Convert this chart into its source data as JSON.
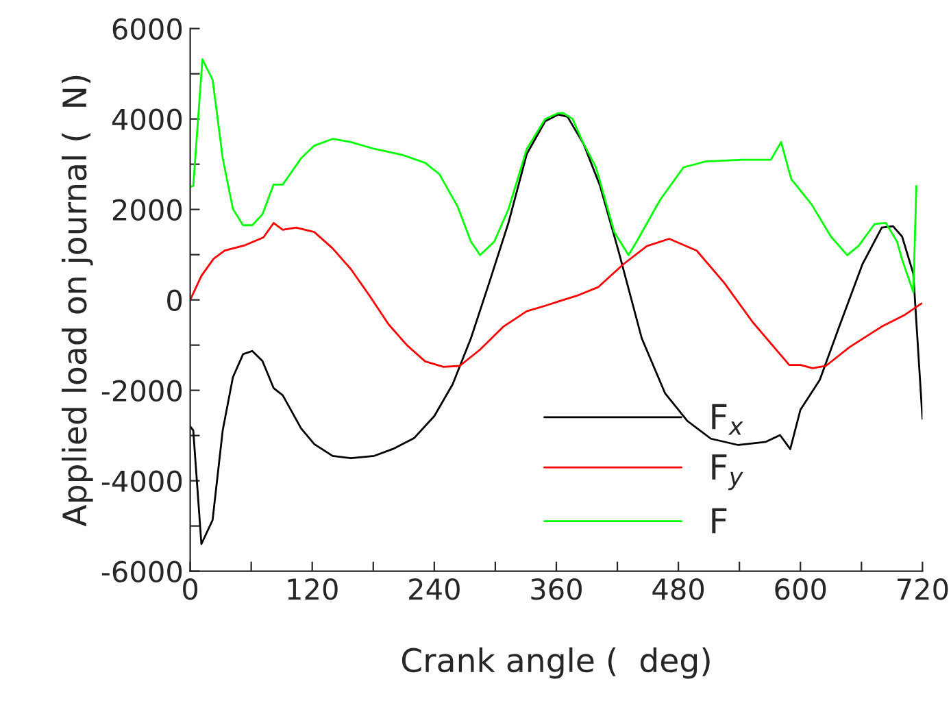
{
  "chart_data": {
    "type": "line",
    "xlabel": "Crank angle (  deg)",
    "ylabel": "Applied load on journal (  N)",
    "xlim": [
      0,
      720
    ],
    "ylim": [
      -6000,
      6000
    ],
    "xticks": [
      0,
      {
        "value": 60,
        "label": null
      },
      120,
      {
        "value": 180,
        "label": null
      },
      240,
      {
        "value": 300,
        "label": null
      },
      360,
      {
        "value": 420,
        "label": null
      },
      480,
      {
        "value": 540,
        "label": null
      },
      600,
      {
        "value": 660,
        "label": null
      },
      720
    ],
    "yticks": [
      -6000,
      {
        "value": -5000,
        "label": null
      },
      -4000,
      {
        "value": -3000,
        "label": null
      },
      -2000,
      {
        "value": -1000,
        "label": null
      },
      0,
      {
        "value": 1000,
        "label": null
      },
      2000,
      {
        "value": 3000,
        "label": null
      },
      4000,
      {
        "value": 5000,
        "label": null
      },
      6000
    ],
    "grid": false,
    "legend": "bottom",
    "line_style": "solid",
    "marker": "none",
    "series": [
      {
        "name": "F$_{x}$",
        "color": "#000000",
        "x": [
          0,
          3,
          11,
          22,
          32,
          42,
          52,
          61,
          71,
          82,
          91,
          109,
          122,
          140,
          158,
          181,
          199,
          220,
          240,
          258,
          276,
          294,
          313,
          331,
          349,
          362,
          371,
          387,
          403,
          421,
          444,
          467,
          489,
          512,
          539,
          566,
          580,
          590,
          600,
          619,
          639,
          661,
          680,
          691,
          700,
          711,
          720
        ],
        "values": [
          -2800,
          -2886,
          -5400,
          -4870,
          -2880,
          -1710,
          -1200,
          -1130,
          -1350,
          -1950,
          -2110,
          -2840,
          -3190,
          -3450,
          -3500,
          -3450,
          -3300,
          -3060,
          -2570,
          -1870,
          -850,
          380,
          1710,
          3230,
          3950,
          4100,
          4050,
          3440,
          2520,
          1090,
          -850,
          -2070,
          -2680,
          -3070,
          -3210,
          -3140,
          -2990,
          -3300,
          -2430,
          -1770,
          -540,
          790,
          1600,
          1630,
          1400,
          580,
          -2630
        ]
      },
      {
        "name": "F$_{y}$",
        "color": "#ff0000",
        "x": [
          0,
          11,
          23,
          34,
          54,
          72,
          82,
          91,
          104,
          122,
          140,
          158,
          177,
          195,
          213,
          231,
          249,
          265,
          285,
          308,
          331,
          349,
          367,
          380,
          401,
          426,
          449,
          471,
          498,
          525,
          553,
          589,
          600,
          612,
          625,
          648,
          680,
          702,
          719
        ],
        "values": [
          0,
          530,
          910,
          1090,
          1210,
          1380,
          1700,
          1550,
          1600,
          1500,
          1140,
          680,
          70,
          -540,
          -1000,
          -1360,
          -1480,
          -1460,
          -1100,
          -590,
          -250,
          -130,
          0,
          90,
          280,
          790,
          1190,
          1350,
          1090,
          380,
          -490,
          -1440,
          -1440,
          -1510,
          -1460,
          -1050,
          -590,
          -340,
          -80
        ]
      },
      {
        "name": "F",
        "color": "#00ff00",
        "x": [
          0,
          3,
          12,
          22,
          32,
          42,
          52,
          61,
          71,
          82,
          91,
          109,
          122,
          140,
          158,
          181,
          208,
          231,
          245,
          263,
          276,
          285,
          299,
          313,
          331,
          349,
          362,
          367,
          376,
          385,
          399,
          417,
          431,
          439,
          462,
          485,
          507,
          543,
          571,
          581,
          591,
          611,
          630,
          646,
          657,
          673,
          684,
          695,
          700,
          711,
          714
        ],
        "values": [
          2500,
          2520,
          5320,
          4870,
          3130,
          2010,
          1650,
          1650,
          1890,
          2550,
          2550,
          3130,
          3410,
          3560,
          3490,
          3340,
          3210,
          3030,
          2780,
          2060,
          1290,
          990,
          1290,
          2010,
          3340,
          4000,
          4130,
          4130,
          4000,
          3540,
          2930,
          1500,
          990,
          1290,
          2210,
          2930,
          3060,
          3100,
          3100,
          3490,
          2670,
          2110,
          1400,
          990,
          1190,
          1680,
          1700,
          1290,
          890,
          170,
          2520
        ]
      }
    ]
  }
}
